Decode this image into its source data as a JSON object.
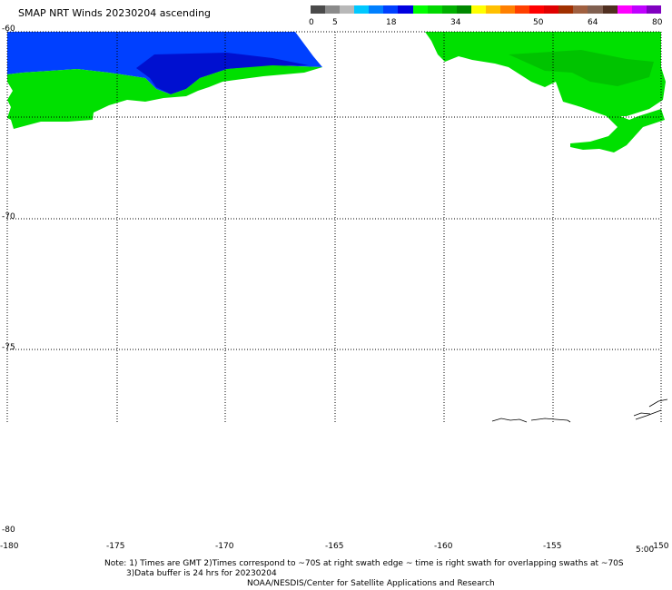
{
  "title": "SMAP NRT Winds 20230204 ascending",
  "colorbar": {
    "labels": [
      "0",
      "5",
      "18",
      "34",
      "50",
      "64",
      "80"
    ],
    "segments": [
      {
        "color": "#4a4a4a"
      },
      {
        "color": "#8a8a8a"
      },
      {
        "color": "#b8b8b8"
      },
      {
        "color": "#00c8ff"
      },
      {
        "color": "#0080ff"
      },
      {
        "color": "#0040ff"
      },
      {
        "color": "#0000e0"
      },
      {
        "color": "#00ff00"
      },
      {
        "color": "#00d800"
      },
      {
        "color": "#00b000"
      },
      {
        "color": "#008800"
      },
      {
        "color": "#ffff00"
      },
      {
        "color": "#ffc000"
      },
      {
        "color": "#ff8000"
      },
      {
        "color": "#ff4000"
      },
      {
        "color": "#ff0000"
      },
      {
        "color": "#e00000"
      },
      {
        "color": "#a03000"
      },
      {
        "color": "#a06040"
      },
      {
        "color": "#806050"
      },
      {
        "color": "#503020"
      },
      {
        "color": "#ff00ff"
      },
      {
        "color": "#c000ff"
      },
      {
        "color": "#8000c0"
      }
    ]
  },
  "map": {
    "lat_labels": [
      "-60",
      "-70",
      "-75",
      "-80"
    ],
    "lon_labels": [
      "-180",
      "-175",
      "-170",
      "-165",
      "-160",
      "-155",
      "-150"
    ],
    "time_label": "5:00",
    "colors": {
      "land_green": "#00e000",
      "dark_green": "#00a000",
      "blue": "#0040ff",
      "dark_blue": "#0010d0",
      "grid": "#000000"
    }
  },
  "note": {
    "line1": "Note: 1) Times are GMT 2)Times correspond to ~70S at right swath edge ~ time is right swath for overlapping swaths at ~70S",
    "line2": "3)Data buffer is 24 hrs for 20230204"
  },
  "credit": "NOAA/NESDIS/Center for Satellite Applications and Research"
}
